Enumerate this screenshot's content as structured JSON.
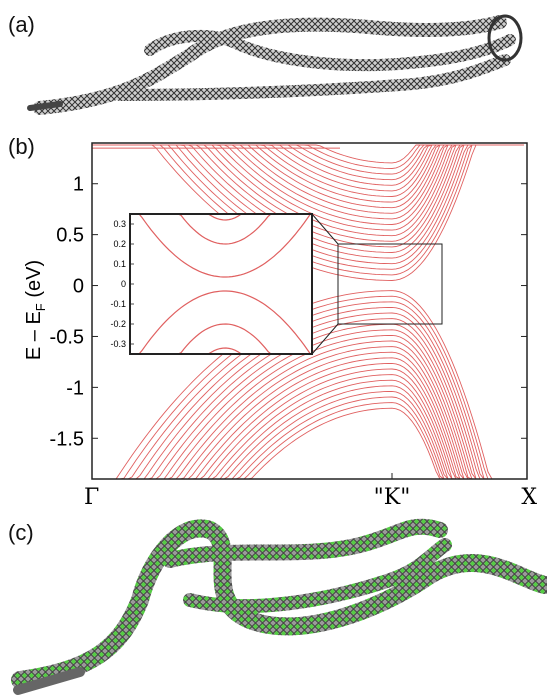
{
  "figure": {
    "panels": [
      "(a)",
      "(b)",
      "(c)"
    ],
    "colors": {
      "bands": "#e06060",
      "frame": "#222222",
      "atoms": "#44cc33",
      "ribbon": "#555555"
    }
  },
  "chart_data": {
    "type": "line",
    "ylabel_main": "E – E",
    "ylabel_sub": "F",
    "ylabel_unit": " (eV)",
    "xticks": [
      "Γ",
      "\"K\"",
      "X"
    ],
    "yticks": [
      {
        "v": 1,
        "label": "1"
      },
      {
        "v": 0.5,
        "label": "0.5"
      },
      {
        "v": 0,
        "label": "0"
      },
      {
        "v": -0.5,
        "label": "-0.5"
      },
      {
        "v": -1,
        "label": "-1"
      },
      {
        "v": -1.5,
        "label": "-1.5"
      }
    ],
    "ylim": [
      -1.9,
      1.4
    ],
    "inset": {
      "yticks": [
        "0.3",
        "0.2",
        "0.1",
        "0",
        "-0.1",
        "-0.2",
        "-0.3"
      ],
      "ylim": [
        -0.35,
        0.35
      ]
    }
  }
}
